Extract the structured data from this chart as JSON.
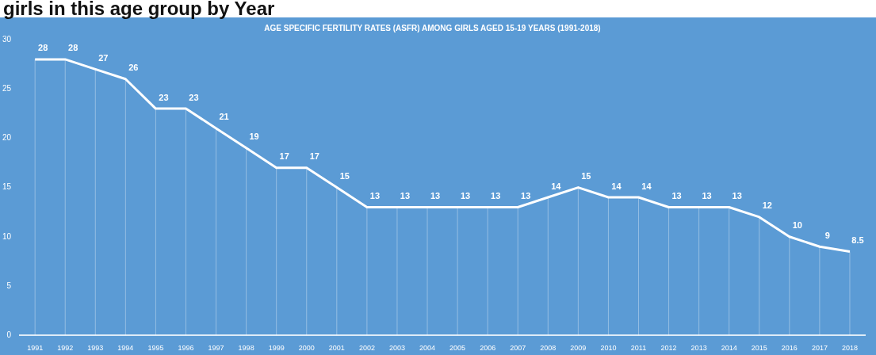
{
  "chart_data": {
    "type": "line",
    "title": "AGE SPECIFIC FERTILITY RATES (ASFR) AMONG GIRLS AGED 15-19 YEARS (1991-2018)",
    "annotations": [
      "girls in this age group by Year"
    ],
    "categories": [
      "1991",
      "1992",
      "1993",
      "1994",
      "1995",
      "1996",
      "1997",
      "1998",
      "1999",
      "2000",
      "2001",
      "2002",
      "2003",
      "2004",
      "2005",
      "2006",
      "2007",
      "2008",
      "2009",
      "2010",
      "2011",
      "2012",
      "2013",
      "2014",
      "2015",
      "2016",
      "2017",
      "2018"
    ],
    "series": [
      {
        "color": "#ffffff",
        "values": [
          28,
          28,
          27,
          26,
          23,
          23,
          21,
          19,
          17,
          17,
          15,
          13,
          13,
          13,
          13,
          13,
          13,
          14,
          15,
          14,
          14,
          13,
          13,
          13,
          12,
          10,
          9,
          8.5
        ]
      }
    ],
    "ylim": [
      0,
      30
    ],
    "yticks": [
      0,
      5,
      10,
      15,
      20,
      25,
      30
    ],
    "grid": "x",
    "legend": false,
    "marker": "none",
    "line_style": "solid",
    "data_labels": true
  }
}
